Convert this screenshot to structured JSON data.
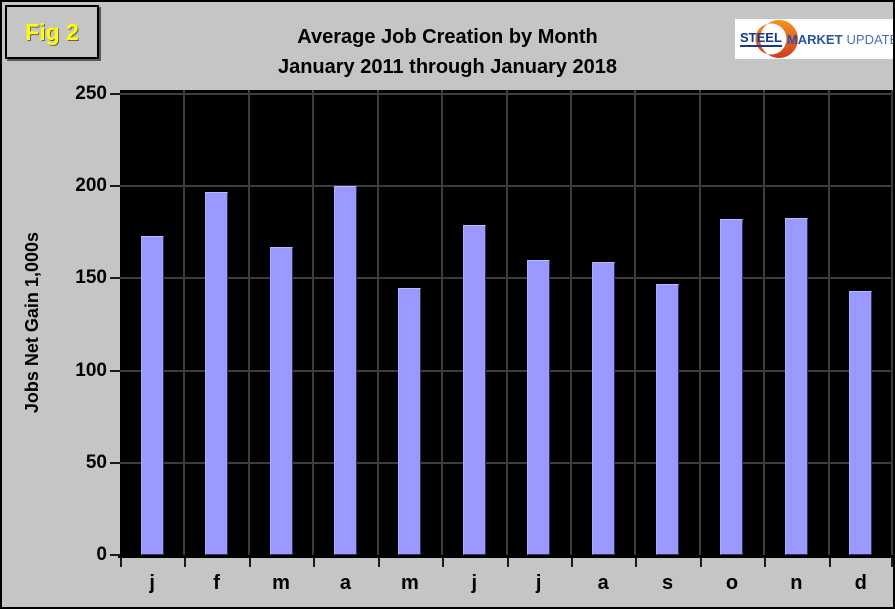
{
  "figure_label": "Fig 2",
  "title": "Average Job Creation by Month",
  "subtitle": "January 2011 through January 2018",
  "logo": {
    "steel": "STEEL",
    "market": "MARKET",
    "update": "UPDATE"
  },
  "colors": {
    "page_bg": "#c5c5c5",
    "plot_bg": "#000000",
    "bar": "#9999ff",
    "gridline": "#3d3d3d",
    "fig_label_text": "#ffff00",
    "logo_steel": "#123a8f",
    "logo_market": "#2c51a8",
    "logo_update": "#4a6fbd",
    "logo_arc_top": "#f6921e",
    "logo_arc_bottom": "#d13c1f"
  },
  "chart_data": {
    "type": "bar",
    "title": "Average Job Creation by Month",
    "subtitle": "January 2011 through January 2018",
    "categories": [
      "j",
      "f",
      "m",
      "a",
      "m",
      "j",
      "j",
      "a",
      "s",
      "o",
      "n",
      "d"
    ],
    "values": [
      173,
      197,
      167,
      200,
      145,
      179,
      160,
      159,
      147,
      182,
      183,
      143
    ],
    "xlabel": "",
    "ylabel": "Jobs Net Gain 1,000s",
    "ylim": [
      0,
      250
    ],
    "ytick_interval": 50,
    "yticks": [
      0,
      50,
      100,
      150,
      200,
      250
    ],
    "grid": true,
    "legend": false,
    "plot_background": "black",
    "bar_color": "#9999ff"
  }
}
